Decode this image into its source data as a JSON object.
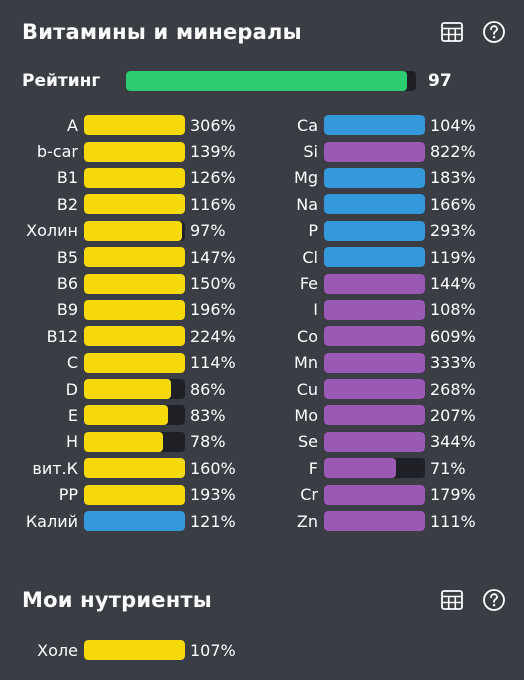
{
  "vitamins_section": {
    "title": "Витамины и минералы",
    "icons": [
      "table-icon",
      "help-icon"
    ]
  },
  "rating": {
    "label": "Рейтинг",
    "value": "97",
    "fill": 0.97,
    "color": "#2ecc71"
  },
  "colors": {
    "yellow": "#f5d90a",
    "blue": "#3498db",
    "purple": "#9b59b6",
    "track": "#1f2025"
  },
  "left_items": [
    {
      "label": "A",
      "pct": "306%",
      "fill": 1.0,
      "color": "#f5d90a"
    },
    {
      "label": "b-car",
      "pct": "139%",
      "fill": 1.0,
      "color": "#f5d90a"
    },
    {
      "label": "B1",
      "pct": "126%",
      "fill": 1.0,
      "color": "#f5d90a"
    },
    {
      "label": "B2",
      "pct": "116%",
      "fill": 1.0,
      "color": "#f5d90a"
    },
    {
      "label": "Холин",
      "pct": "97%",
      "fill": 0.97,
      "color": "#f5d90a"
    },
    {
      "label": "B5",
      "pct": "147%",
      "fill": 1.0,
      "color": "#f5d90a"
    },
    {
      "label": "B6",
      "pct": "150%",
      "fill": 1.0,
      "color": "#f5d90a"
    },
    {
      "label": "B9",
      "pct": "196%",
      "fill": 1.0,
      "color": "#f5d90a"
    },
    {
      "label": "B12",
      "pct": "224%",
      "fill": 1.0,
      "color": "#f5d90a"
    },
    {
      "label": "C",
      "pct": "114%",
      "fill": 1.0,
      "color": "#f5d90a"
    },
    {
      "label": "D",
      "pct": "86%",
      "fill": 0.86,
      "color": "#f5d90a"
    },
    {
      "label": "E",
      "pct": "83%",
      "fill": 0.83,
      "color": "#f5d90a"
    },
    {
      "label": "H",
      "pct": "78%",
      "fill": 0.78,
      "color": "#f5d90a"
    },
    {
      "label": "вит.К",
      "pct": "160%",
      "fill": 1.0,
      "color": "#f5d90a"
    },
    {
      "label": "PP",
      "pct": "193%",
      "fill": 1.0,
      "color": "#f5d90a"
    },
    {
      "label": "Калий",
      "pct": "121%",
      "fill": 1.0,
      "color": "#3498db"
    }
  ],
  "right_items": [
    {
      "label": "Ca",
      "pct": "104%",
      "fill": 1.0,
      "color": "#3498db"
    },
    {
      "label": "Si",
      "pct": "822%",
      "fill": 1.0,
      "color": "#9b59b6"
    },
    {
      "label": "Mg",
      "pct": "183%",
      "fill": 1.0,
      "color": "#3498db"
    },
    {
      "label": "Na",
      "pct": "166%",
      "fill": 1.0,
      "color": "#3498db"
    },
    {
      "label": "P",
      "pct": "293%",
      "fill": 1.0,
      "color": "#3498db"
    },
    {
      "label": "Cl",
      "pct": "119%",
      "fill": 1.0,
      "color": "#3498db"
    },
    {
      "label": "Fe",
      "pct": "144%",
      "fill": 1.0,
      "color": "#9b59b6"
    },
    {
      "label": "I",
      "pct": "108%",
      "fill": 1.0,
      "color": "#9b59b6"
    },
    {
      "label": "Co",
      "pct": "609%",
      "fill": 1.0,
      "color": "#9b59b6"
    },
    {
      "label": "Mn",
      "pct": "333%",
      "fill": 1.0,
      "color": "#9b59b6"
    },
    {
      "label": "Cu",
      "pct": "268%",
      "fill": 1.0,
      "color": "#9b59b6"
    },
    {
      "label": "Mo",
      "pct": "207%",
      "fill": 1.0,
      "color": "#9b59b6"
    },
    {
      "label": "Se",
      "pct": "344%",
      "fill": 1.0,
      "color": "#9b59b6"
    },
    {
      "label": "F",
      "pct": "71%",
      "fill": 0.71,
      "color": "#9b59b6"
    },
    {
      "label": "Cr",
      "pct": "179%",
      "fill": 1.0,
      "color": "#9b59b6"
    },
    {
      "label": "Zn",
      "pct": "111%",
      "fill": 1.0,
      "color": "#9b59b6"
    }
  ],
  "nutrients_section": {
    "title": "Мои нутриенты",
    "icons": [
      "table-icon",
      "help-icon"
    ],
    "items": [
      {
        "label": "Холе",
        "pct": "107%",
        "fill": 1.0,
        "color": "#f5d90a"
      }
    ]
  }
}
